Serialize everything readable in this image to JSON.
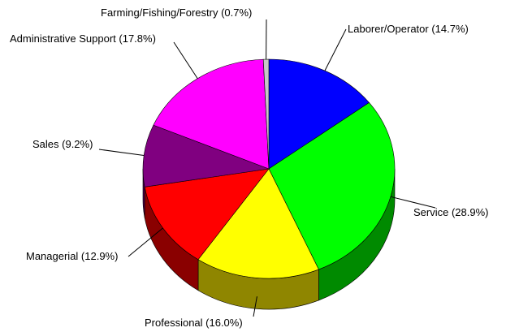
{
  "chart_data": {
    "type": "pie",
    "style": "3d",
    "series": [
      {
        "label": "Laborer/Operator",
        "value": 14.7,
        "label_text": "Laborer/Operator (14.7%)",
        "color": "#0000ff",
        "side_color": "#00008f"
      },
      {
        "label": "Service",
        "value": 28.9,
        "label_text": "Service (28.9%)",
        "color": "#00ff00",
        "side_color": "#008a00"
      },
      {
        "label": "Professional",
        "value": 16.0,
        "label_text": "Professional (16.0%)",
        "color": "#ffff00",
        "side_color": "#8f8600"
      },
      {
        "label": "Managerial",
        "value": 12.9,
        "label_text": "Managerial (12.9%)",
        "color": "#ff0000",
        "side_color": "#8a0000"
      },
      {
        "label": "Sales",
        "value": 9.2,
        "label_text": "Sales (9.2%)",
        "color": "#800080",
        "side_color": "#4a004a"
      },
      {
        "label": "Administrative Support",
        "value": 17.8,
        "label_text": "Administrative Support (17.8%)",
        "color": "#ff00ff",
        "side_color": "#8a008a"
      },
      {
        "label": "Farming/Fishing/Forestry",
        "value": 0.7,
        "label_text": "Farming/Fishing/Forestry (0.7%)",
        "color": "#c8c8c8",
        "side_color": "#808080"
      }
    ]
  }
}
